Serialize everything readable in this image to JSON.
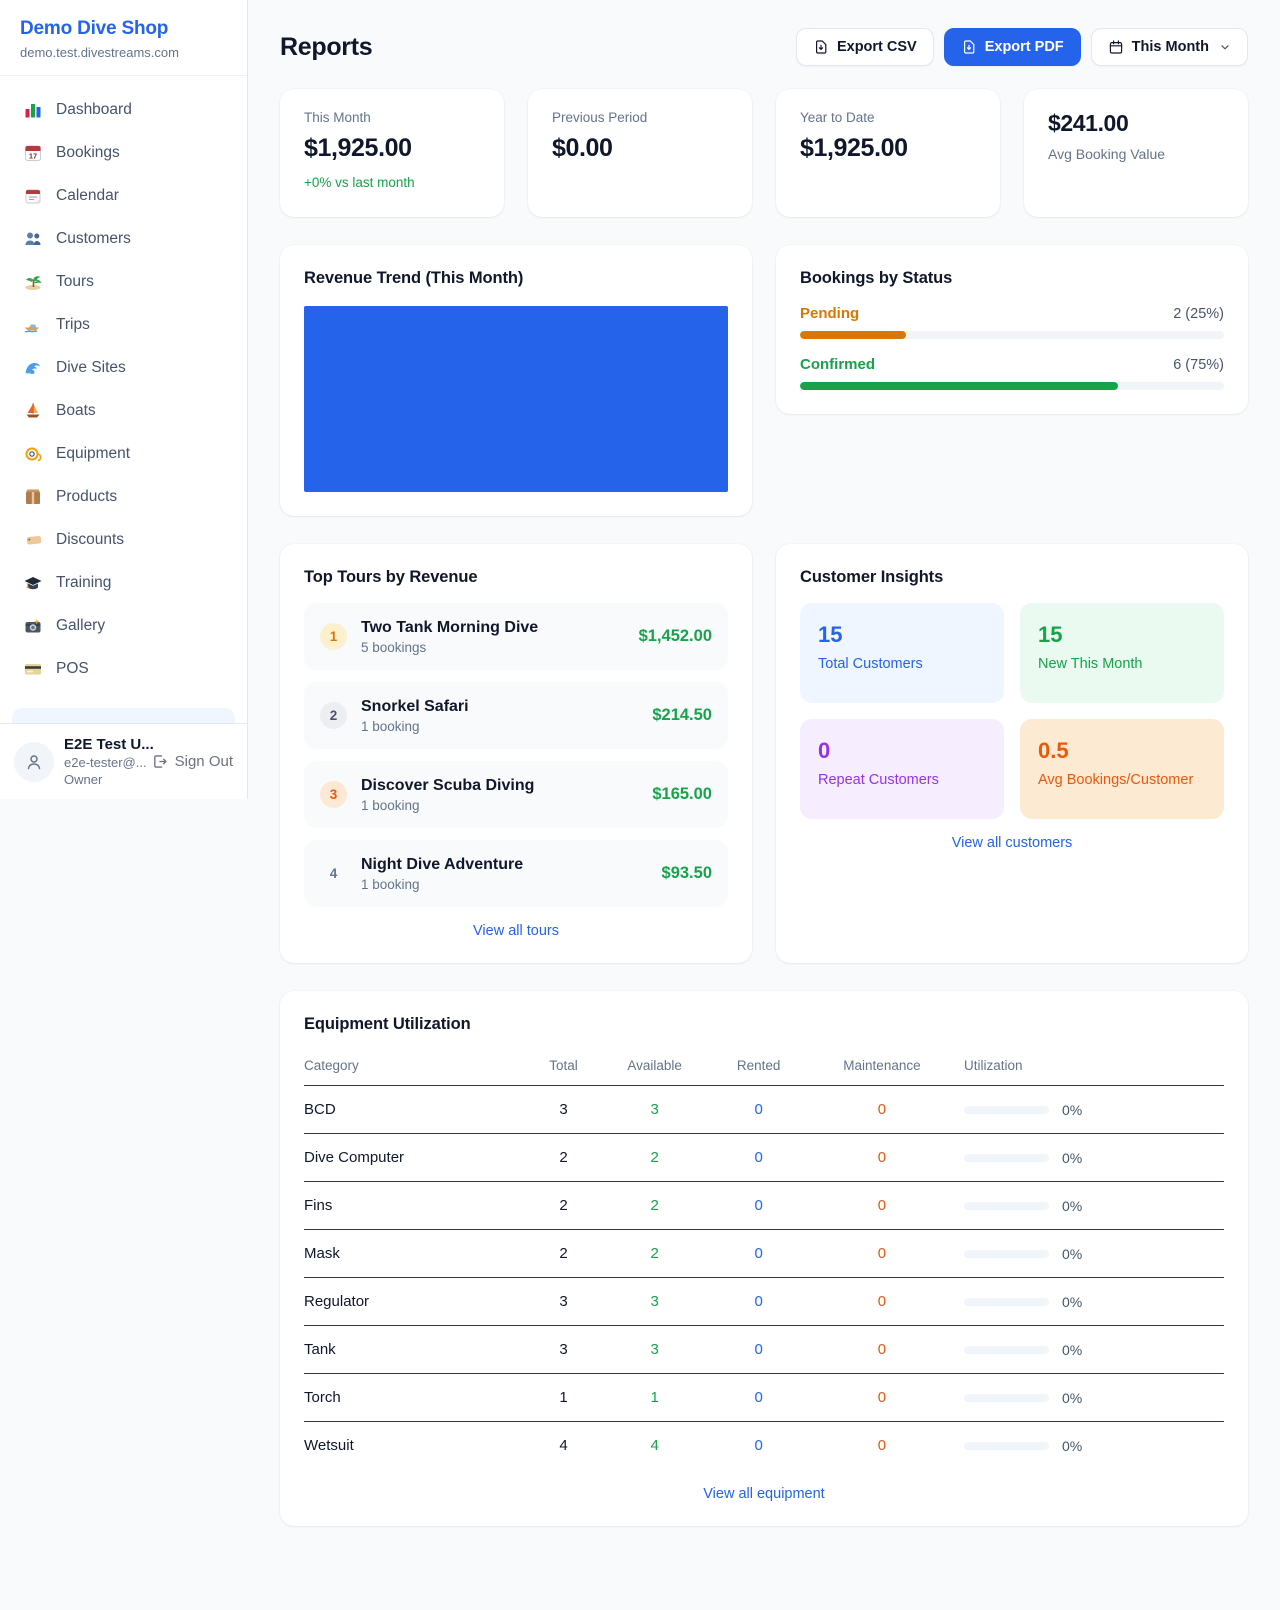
{
  "sidebar": {
    "brand": {
      "name": "Demo Dive Shop",
      "domain": "demo.test.divestreams.com"
    },
    "nav": [
      {
        "icon": "bar-chart-icon",
        "label": "Dashboard"
      },
      {
        "icon": "calendar-date-icon",
        "label": "Bookings"
      },
      {
        "icon": "tear-off-calendar-icon",
        "label": "Calendar"
      },
      {
        "icon": "people-icon",
        "label": "Customers"
      },
      {
        "icon": "island-icon",
        "label": "Tours"
      },
      {
        "icon": "speedboat-icon",
        "label": "Trips"
      },
      {
        "icon": "wave-icon",
        "label": "Dive Sites"
      },
      {
        "icon": "sailboat-icon",
        "label": "Boats"
      },
      {
        "icon": "diving-mask-icon",
        "label": "Equipment"
      },
      {
        "icon": "package-icon",
        "label": "Products"
      },
      {
        "icon": "tag-icon",
        "label": "Discounts"
      },
      {
        "icon": "graduation-cap-icon",
        "label": "Training"
      },
      {
        "icon": "camera-icon",
        "label": "Gallery"
      },
      {
        "icon": "credit-card-icon",
        "label": "POS"
      }
    ],
    "user": {
      "name": "E2E Test U...",
      "email": "e2e-tester@...",
      "role": "Owner",
      "sign_out": "Sign Out"
    }
  },
  "header": {
    "title": "Reports",
    "export_csv": "Export CSV",
    "export_pdf": "Export PDF",
    "period": "This Month"
  },
  "stats": [
    {
      "label": "This Month",
      "value": "$1,925.00",
      "delta": "+0% vs last month"
    },
    {
      "label": "Previous Period",
      "value": "$0.00"
    },
    {
      "label": "Year to Date",
      "value": "$1,925.00"
    },
    {
      "label": "Avg Booking Value",
      "value": "$241.00"
    }
  ],
  "revenue_trend": {
    "title": "Revenue Trend (This Month)",
    "bar_color": "#2563eb"
  },
  "bookings_by_status": {
    "title": "Bookings by Status",
    "rows": [
      {
        "label": "Pending",
        "value": "2 (25%)",
        "pct": 25,
        "color": "#d97706"
      },
      {
        "label": "Confirmed",
        "value": "6 (75%)",
        "pct": 75,
        "color": "#16a34a"
      }
    ]
  },
  "top_tours": {
    "title": "Top Tours by Revenue",
    "items": [
      {
        "rank": "1",
        "name": "Two Tank Morning Dive",
        "bookings": "5 bookings",
        "revenue": "$1,452.00"
      },
      {
        "rank": "2",
        "name": "Snorkel Safari",
        "bookings": "1 booking",
        "revenue": "$214.50"
      },
      {
        "rank": "3",
        "name": "Discover Scuba Diving",
        "bookings": "1 booking",
        "revenue": "$165.00"
      },
      {
        "rank": "4",
        "name": "Night Dive Adventure",
        "bookings": "1 booking",
        "revenue": "$93.50"
      }
    ],
    "link": "View all tours"
  },
  "customer_insights": {
    "title": "Customer Insights",
    "tiles": [
      {
        "value": "15",
        "label": "Total Customers",
        "fg": "#2563eb",
        "bg": "#eff6ff"
      },
      {
        "value": "15",
        "label": "New This Month",
        "fg": "#16a34a",
        "bg": "#eafaf0"
      },
      {
        "value": "0",
        "label": "Repeat Customers",
        "fg": "#9333ea",
        "bg": "#f6eefe"
      },
      {
        "value": "0.5",
        "label": "Avg Bookings/Customer",
        "fg": "#ea580c",
        "bg": "#fdead2"
      }
    ],
    "link": "View all customers"
  },
  "equipment": {
    "title": "Equipment Utilization",
    "headers": [
      "Category",
      "Total",
      "Available",
      "Rented",
      "Maintenance",
      "Utilization"
    ],
    "rows": [
      {
        "category": "BCD",
        "total": "3",
        "available": "3",
        "rented": "0",
        "maintenance": "0",
        "utilization": "0%",
        "util_pct": 0
      },
      {
        "category": "Dive Computer",
        "total": "2",
        "available": "2",
        "rented": "0",
        "maintenance": "0",
        "utilization": "0%",
        "util_pct": 0
      },
      {
        "category": "Fins",
        "total": "2",
        "available": "2",
        "rented": "0",
        "maintenance": "0",
        "utilization": "0%",
        "util_pct": 0
      },
      {
        "category": "Mask",
        "total": "2",
        "available": "2",
        "rented": "0",
        "maintenance": "0",
        "utilization": "0%",
        "util_pct": 0
      },
      {
        "category": "Regulator",
        "total": "3",
        "available": "3",
        "rented": "0",
        "maintenance": "0",
        "utilization": "0%",
        "util_pct": 0
      },
      {
        "category": "Tank",
        "total": "3",
        "available": "3",
        "rented": "0",
        "maintenance": "0",
        "utilization": "0%",
        "util_pct": 0
      },
      {
        "category": "Torch",
        "total": "1",
        "available": "1",
        "rented": "0",
        "maintenance": "0",
        "utilization": "0%",
        "util_pct": 0
      },
      {
        "category": "Wetsuit",
        "total": "4",
        "available": "4",
        "rented": "0",
        "maintenance": "0",
        "utilization": "0%",
        "util_pct": 0
      }
    ],
    "link": "View all equipment"
  }
}
